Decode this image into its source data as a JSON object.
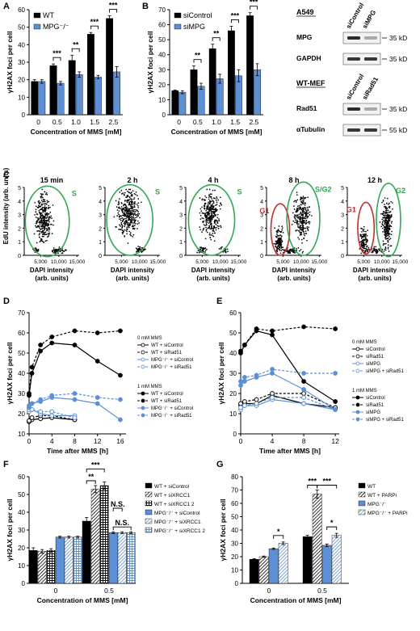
{
  "colors": {
    "black": "#000000",
    "blue": "#5b8fd8",
    "green": "#2eaa52",
    "red": "#cc2a2a",
    "gray": "#888888"
  },
  "chart_data": [
    {
      "panel": "A",
      "type": "bar",
      "ylabel": "γH2AX foci per cell",
      "xlabel": "Concentration of MMS [mM]",
      "categories": [
        "0",
        "0.5",
        "1.0",
        "1.5",
        "2.5"
      ],
      "ylim": [
        0,
        60
      ],
      "yticks": [
        "0",
        "10",
        "20",
        "30",
        "40",
        "50",
        "60"
      ],
      "series": [
        {
          "name": "WT",
          "values": [
            19,
            28,
            31,
            46,
            55
          ],
          "errors": [
            1,
            1,
            3,
            1,
            1.5
          ]
        },
        {
          "name": "MPG⁻/⁻",
          "values": [
            19,
            18,
            23,
            21.5,
            24.5
          ],
          "errors": [
            1,
            1,
            1.5,
            1,
            3
          ]
        }
      ],
      "significance": [
        "",
        "***",
        "**",
        "***",
        "***"
      ]
    },
    {
      "panel": "B",
      "type": "bar",
      "ylabel": "γH2AX foci per cell",
      "xlabel": "Concentration of MMS [mM]",
      "categories": [
        "0",
        "0.5",
        "1.0",
        "1.5",
        "2.5"
      ],
      "ylim": [
        0,
        70
      ],
      "yticks": [
        "0",
        "10",
        "20",
        "30",
        "40",
        "50",
        "60",
        "70"
      ],
      "series": [
        {
          "name": "siControl",
          "values": [
            16,
            30,
            44,
            56,
            66
          ],
          "errors": [
            0.5,
            2.5,
            3,
            3,
            2
          ]
        },
        {
          "name": "siMPG",
          "values": [
            15,
            19,
            24,
            26,
            30
          ],
          "errors": [
            1,
            2,
            3,
            4,
            4
          ]
        }
      ],
      "significance": [
        "",
        "**",
        "**",
        "***",
        "***"
      ]
    },
    {
      "panel": "C",
      "type": "scatter",
      "xlabel": "DAPI intensity\n(arb. units)",
      "ylabel": "EdU intensity (arb. units)",
      "xticks": [
        "5,000",
        "10,000",
        "15,000"
      ],
      "yticks": [
        "0",
        "1",
        "2",
        "3",
        "4",
        "5"
      ],
      "subplots": [
        {
          "title": "15 min",
          "gates": [
            {
              "label": "S",
              "color": "green"
            }
          ]
        },
        {
          "title": "2 h",
          "gates": [
            {
              "label": "S",
              "color": "green"
            }
          ]
        },
        {
          "title": "4 h",
          "gates": [
            {
              "label": "S",
              "color": "green"
            }
          ]
        },
        {
          "title": "8 h",
          "gates": [
            {
              "label": "G1",
              "color": "red"
            },
            {
              "label": "S/G2",
              "color": "green"
            }
          ]
        },
        {
          "title": "12 h",
          "gates": [
            {
              "label": "G1",
              "color": "red"
            },
            {
              "label": "G2",
              "color": "green"
            }
          ]
        }
      ]
    },
    {
      "panel": "D",
      "type": "line",
      "ylabel": "γH2AX foci per cell",
      "xlabel": "Time after MMS [h]",
      "x": [
        0,
        0.5,
        2,
        4,
        8,
        12,
        16
      ],
      "ylim": [
        10,
        70
      ],
      "xticks": [
        "0",
        "4",
        "8",
        "12",
        "16"
      ],
      "yticks": [
        "10",
        "20",
        "30",
        "40",
        "50",
        "60",
        "70"
      ],
      "group_labels": [
        "0 mM MMS",
        "1 mM MMS"
      ],
      "series": [
        {
          "name": "WT + siControl",
          "group": 0,
          "values": [
            16,
            17,
            17.5,
            18,
            17,
            null,
            null
          ]
        },
        {
          "name": "WT + siRad51",
          "group": 0,
          "values": [
            16.5,
            18,
            19,
            19,
            17,
            null,
            null
          ]
        },
        {
          "name": "MPG⁻/⁻ + siControl",
          "group": 0,
          "values": [
            21,
            22,
            20,
            19,
            19,
            null,
            null
          ]
        },
        {
          "name": "MPG⁻/⁻ + siRad51",
          "group": 0,
          "values": [
            22,
            22,
            21,
            21,
            18,
            null,
            null
          ]
        },
        {
          "name": "WT + siControl",
          "group": 1,
          "values": [
            29,
            40,
            51,
            55,
            54,
            46,
            39
          ]
        },
        {
          "name": "WT + siRad51",
          "group": 1,
          "values": [
            30,
            43,
            54,
            58,
            61,
            60,
            61
          ]
        },
        {
          "name": "MPG⁻/⁻ + siControl",
          "group": 1,
          "values": [
            23,
            25,
            26,
            28,
            27,
            25,
            17
          ]
        },
        {
          "name": "MPG⁻/⁻ + siRad51",
          "group": 1,
          "values": [
            24,
            25,
            27,
            29,
            30,
            28,
            27
          ]
        }
      ]
    },
    {
      "panel": "E",
      "type": "line",
      "ylabel": "γH2AX foci per cell",
      "xlabel": "Time after MMS [h]",
      "x": [
        0,
        0.5,
        2,
        4,
        8,
        12
      ],
      "ylim": [
        0,
        60
      ],
      "xticks": [
        "0",
        "4",
        "8",
        "12"
      ],
      "yticks": [
        "0",
        "10",
        "20",
        "30",
        "40",
        "50",
        "60"
      ],
      "group_labels": [
        "0 mM MMS",
        "1 mM MMS"
      ],
      "series": [
        {
          "name": "siControl",
          "group": 0,
          "values": [
            14,
            15,
            15,
            19,
            15,
            13
          ]
        },
        {
          "name": "siRad51",
          "group": 0,
          "values": [
            15,
            16,
            17,
            20,
            20,
            13
          ]
        },
        {
          "name": "siMPG",
          "group": 0,
          "values": [
            12,
            14,
            14,
            17,
            15,
            12
          ]
        },
        {
          "name": "siMPG + siRad51",
          "group": 0,
          "values": [
            13,
            14,
            15,
            18,
            18,
            12
          ]
        },
        {
          "name": "siControl",
          "group": 1,
          "values": [
            40,
            44,
            51,
            49,
            26,
            16
          ]
        },
        {
          "name": "siRad51",
          "group": 1,
          "values": [
            41,
            44,
            52,
            51,
            53,
            52
          ]
        },
        {
          "name": "siMPG",
          "group": 1,
          "values": [
            24,
            26,
            28,
            30,
            22,
            12
          ]
        },
        {
          "name": "siMPG + siRad51",
          "group": 1,
          "values": [
            26,
            28,
            29,
            32,
            30,
            30
          ]
        }
      ]
    },
    {
      "panel": "F",
      "type": "bar",
      "ylabel": "γH2AX foci per cell",
      "xlabel": "Concentration of MMS [mM]",
      "categories": [
        "0",
        "0.5"
      ],
      "ylim": [
        0,
        60
      ],
      "yticks": [
        "0",
        "10",
        "20",
        "30",
        "40",
        "50",
        "60"
      ],
      "series": [
        {
          "name": "WT + siControl",
          "values": [
            18.5,
            35
          ],
          "errors": [
            1.5,
            2
          ]
        },
        {
          "name": "WT + siXRCC1",
          "values": [
            18,
            53
          ],
          "errors": [
            1,
            2
          ]
        },
        {
          "name": "WT + siXRCC1 2",
          "values": [
            18.5,
            55
          ],
          "errors": [
            1,
            2
          ]
        },
        {
          "name": "MPG⁻/⁻ + siControl",
          "values": [
            26,
            28.5
          ],
          "errors": [
            0.5,
            0.5
          ]
        },
        {
          "name": "MPG⁻/⁻ + siXRCC1",
          "values": [
            26,
            28.5
          ],
          "errors": [
            0.5,
            0.5
          ]
        },
        {
          "name": "MPG⁻/⁻ + siXRCC1 2",
          "values": [
            26,
            28.5
          ],
          "errors": [
            0.5,
            0.5
          ]
        }
      ],
      "annotations": [
        "**",
        "***",
        "N.S.",
        "N.S."
      ]
    },
    {
      "panel": "G",
      "type": "bar",
      "ylabel": "γH2AX foci per cell",
      "xlabel": "Concentration of MMS [mM]",
      "categories": [
        "0",
        "0.5"
      ],
      "ylim": [
        0,
        80
      ],
      "yticks": [
        "0",
        "10",
        "20",
        "30",
        "40",
        "50",
        "60",
        "70",
        "80"
      ],
      "series": [
        {
          "name": "WT",
          "values": [
            18,
            35
          ],
          "errors": [
            0.5,
            1
          ]
        },
        {
          "name": "WT + PARPi",
          "values": [
            20,
            67
          ],
          "errors": [
            0.5,
            3
          ]
        },
        {
          "name": "MPG⁻/⁻",
          "values": [
            26,
            28.5
          ],
          "errors": [
            0.5,
            1
          ]
        },
        {
          "name": "MPG⁻/⁻ + PARPi",
          "values": [
            30,
            36
          ],
          "errors": [
            1,
            1.5
          ]
        }
      ],
      "annotations": [
        "*",
        "***",
        "***",
        "*"
      ]
    }
  ],
  "blots": [
    {
      "title": "A549",
      "cols": [
        "siControl",
        "siMPG"
      ],
      "rows": [
        {
          "name": "MPG",
          "kd": "35 kD"
        },
        {
          "name": "GAPDH",
          "kd": "35 kD"
        }
      ]
    },
    {
      "title": "WT-MEF",
      "cols": [
        "siControl",
        "siRad51"
      ],
      "rows": [
        {
          "name": "Rad51",
          "kd": "35 kD"
        },
        {
          "name": "αTubulin",
          "kd": "55 kD"
        }
      ]
    }
  ]
}
